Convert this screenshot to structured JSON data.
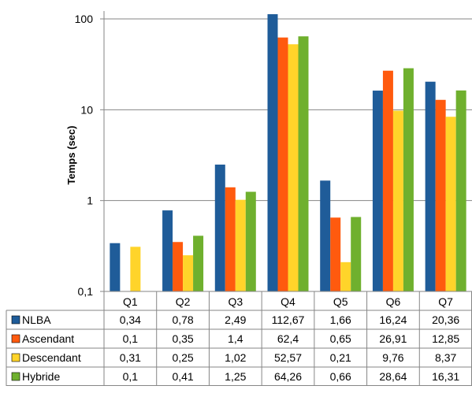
{
  "chart_data": {
    "type": "bar",
    "ylabel": "Temps (sec)",
    "y_scale": "log",
    "ylim": [
      0.1,
      100
    ],
    "y_ticks": [
      "0,1",
      "1",
      "10",
      "100"
    ],
    "grid": true,
    "legend": "table-below",
    "categories": [
      "Q1",
      "Q2",
      "Q3",
      "Q4",
      "Q5",
      "Q6",
      "Q7"
    ],
    "series": [
      {
        "name": "NLBA",
        "color": "#1F5C99",
        "values": [
          0.34,
          0.78,
          2.49,
          112.67,
          1.66,
          16.24,
          20.36
        ],
        "labels": [
          "0,34",
          "0,78",
          "2,49",
          "112,67",
          "1,66",
          "16,24",
          "20,36"
        ]
      },
      {
        "name": "Ascendant",
        "color": "#FF5A0E",
        "values": [
          0.1,
          0.35,
          1.4,
          62.4,
          0.65,
          26.91,
          12.85
        ],
        "labels": [
          "0,1",
          "0,35",
          "1,4",
          "62,4",
          "0,65",
          "26,91",
          "12,85"
        ]
      },
      {
        "name": "Descendant",
        "color": "#FFD42A",
        "values": [
          0.31,
          0.25,
          1.02,
          52.57,
          0.21,
          9.76,
          8.37
        ],
        "labels": [
          "0,31",
          "0,25",
          "1,02",
          "52,57",
          "0,21",
          "9,76",
          "8,37"
        ]
      },
      {
        "name": "Hybride",
        "color": "#6FB02E",
        "values": [
          0.1,
          0.41,
          1.25,
          64.26,
          0.66,
          28.64,
          16.31
        ],
        "labels": [
          "0,1",
          "0,41",
          "1,25",
          "64,26",
          "0,66",
          "28,64",
          "16,31"
        ]
      }
    ]
  }
}
